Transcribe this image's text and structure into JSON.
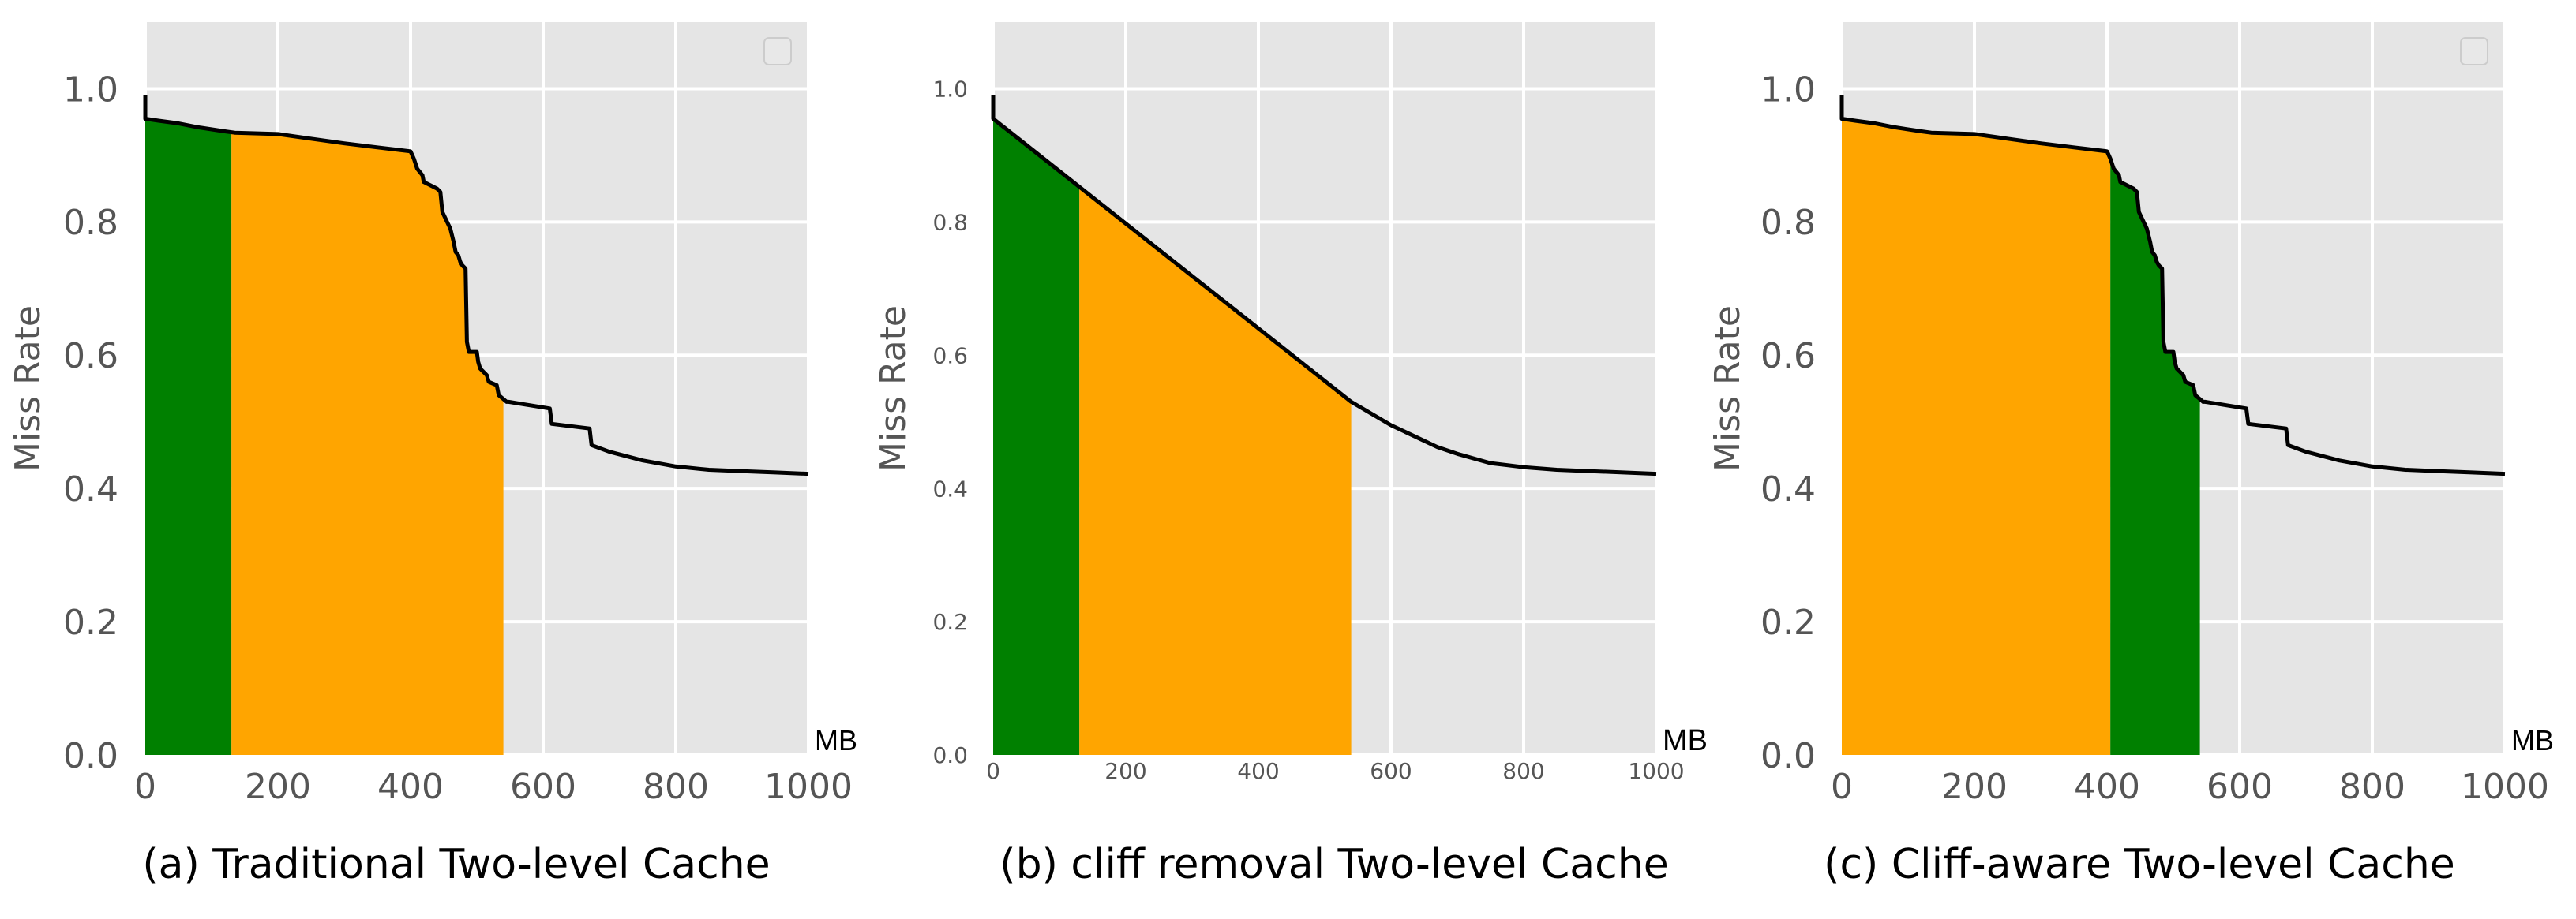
{
  "chart_data": [
    {
      "type": "area",
      "caption": "(a) Traditional Two-level Cache",
      "ylabel": "Miss Rate",
      "unit_label": "MB",
      "xlim": [
        0,
        1000
      ],
      "ylim": [
        0,
        1.1
      ],
      "x_ticks": [
        "0",
        "200",
        "400",
        "600",
        "800",
        "1000"
      ],
      "y_ticks": [
        "0.0",
        "0.2",
        "0.4",
        "0.6",
        "0.8",
        "1.0"
      ],
      "grid": true,
      "legend": "top-right, empty",
      "series": [
        {
          "kind": "miss-rate curve",
          "x": [
            0,
            0,
            20,
            50,
            80,
            120,
            135,
            200,
            250,
            300,
            350,
            400,
            405,
            410,
            418,
            420,
            430,
            440,
            445,
            448,
            460,
            465,
            468,
            472,
            475,
            478,
            483,
            485,
            488,
            500,
            502,
            505,
            515,
            518,
            530,
            533,
            545,
            548,
            610,
            613,
            670,
            673,
            700,
            750,
            800,
            850,
            900,
            950,
            1000
          ],
          "y": [
            0.99,
            0.955,
            0.952,
            0.948,
            0.942,
            0.936,
            0.934,
            0.932,
            0.925,
            0.918,
            0.912,
            0.906,
            0.895,
            0.88,
            0.87,
            0.86,
            0.855,
            0.85,
            0.845,
            0.815,
            0.79,
            0.77,
            0.755,
            0.75,
            0.74,
            0.735,
            0.73,
            0.62,
            0.605,
            0.605,
            0.59,
            0.58,
            0.57,
            0.56,
            0.555,
            0.54,
            0.53,
            0.53,
            0.52,
            0.497,
            0.49,
            0.465,
            0.455,
            0.442,
            0.433,
            0.428,
            0.426,
            0.424,
            0.422
          ]
        }
      ],
      "regions": [
        {
          "color": "#008000",
          "x_from": 0,
          "x_to": 130
        },
        {
          "color": "#ffa500",
          "x_from": 130,
          "x_to": 540
        }
      ]
    },
    {
      "type": "area",
      "caption": "(b) cliff removal Two-level Cache",
      "ylabel": "Miss Rate",
      "unit_label": "MB",
      "xlim": [
        0,
        1000
      ],
      "ylim": [
        0,
        1.1
      ],
      "x_ticks": [
        "0",
        "200",
        "400",
        "600",
        "800",
        "1000"
      ],
      "y_ticks": [
        "0.0",
        "0.2",
        "0.4",
        "0.6",
        "0.8",
        "1.0"
      ],
      "grid": true,
      "legend": "none",
      "series": [
        {
          "kind": "miss-rate curve",
          "x": [
            0,
            0,
            540,
            600,
            670,
            700,
            750,
            800,
            850,
            900,
            950,
            1000
          ],
          "y": [
            0.99,
            0.955,
            0.53,
            0.495,
            0.462,
            0.452,
            0.438,
            0.432,
            0.428,
            0.426,
            0.424,
            0.422
          ]
        }
      ],
      "regions": [
        {
          "color": "#008000",
          "x_from": 0,
          "x_to": 130
        },
        {
          "color": "#ffa500",
          "x_from": 130,
          "x_to": 540
        }
      ]
    },
    {
      "type": "area",
      "caption": "(c) Cliff-aware Two-level Cache",
      "ylabel": "Miss Rate",
      "unit_label": "MB",
      "xlim": [
        0,
        1000
      ],
      "ylim": [
        0,
        1.1
      ],
      "x_ticks": [
        "0",
        "200",
        "400",
        "600",
        "800",
        "1000"
      ],
      "y_ticks": [
        "0.0",
        "0.2",
        "0.4",
        "0.6",
        "0.8",
        "1.0"
      ],
      "grid": true,
      "legend": "top-right, empty",
      "series": [
        {
          "kind": "miss-rate curve",
          "x": [
            0,
            0,
            20,
            50,
            80,
            120,
            135,
            200,
            250,
            300,
            350,
            400,
            405,
            410,
            418,
            420,
            430,
            440,
            445,
            448,
            460,
            465,
            468,
            472,
            475,
            478,
            483,
            485,
            488,
            500,
            502,
            505,
            515,
            518,
            530,
            533,
            545,
            548,
            610,
            613,
            670,
            673,
            700,
            750,
            800,
            850,
            900,
            950,
            1000
          ],
          "y": [
            0.99,
            0.955,
            0.952,
            0.948,
            0.942,
            0.936,
            0.934,
            0.932,
            0.925,
            0.918,
            0.912,
            0.906,
            0.895,
            0.88,
            0.87,
            0.86,
            0.855,
            0.85,
            0.845,
            0.815,
            0.79,
            0.77,
            0.755,
            0.75,
            0.74,
            0.735,
            0.73,
            0.62,
            0.605,
            0.605,
            0.59,
            0.58,
            0.57,
            0.56,
            0.555,
            0.54,
            0.53,
            0.53,
            0.52,
            0.497,
            0.49,
            0.465,
            0.455,
            0.442,
            0.433,
            0.428,
            0.426,
            0.424,
            0.422
          ]
        }
      ],
      "regions": [
        {
          "color": "#ffa500",
          "x_from": 0,
          "x_to": 405
        },
        {
          "color": "#008000",
          "x_from": 405,
          "x_to": 540
        }
      ]
    }
  ]
}
